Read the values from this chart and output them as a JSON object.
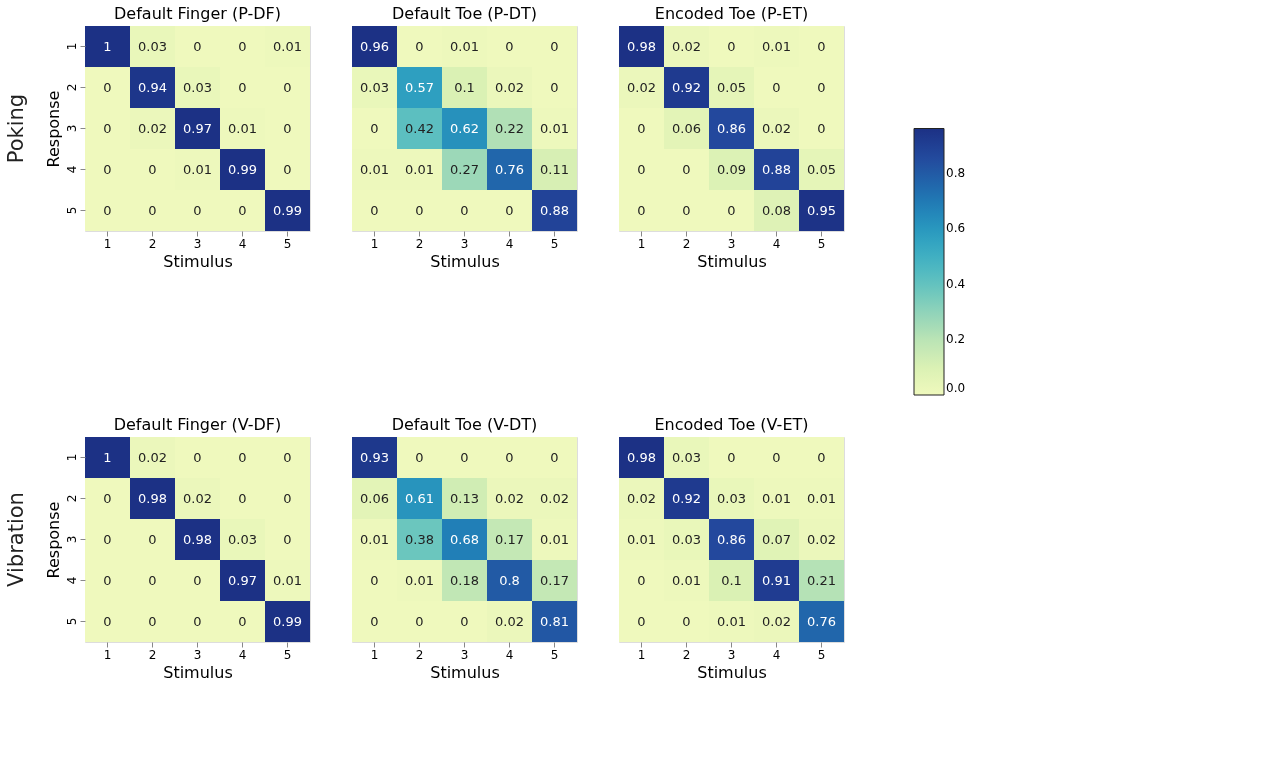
{
  "chart_data": [
    {
      "type": "heatmap",
      "title": "Default Finger (P-DF)",
      "xlabel": "Stimulus",
      "ylabel": "Response",
      "annotations": [
        "Poking"
      ],
      "categories": [
        "1",
        "2",
        "3",
        "4",
        "5"
      ],
      "y_categories": [
        "1",
        "2",
        "3",
        "4",
        "5"
      ],
      "data_labels": true,
      "cells": [
        [
          1,
          0.03,
          0,
          0,
          0.01
        ],
        [
          0,
          0.94,
          0.03,
          0,
          0
        ],
        [
          0,
          0.02,
          0.97,
          0.01,
          0
        ],
        [
          0,
          0,
          0.01,
          0.99,
          0
        ],
        [
          0,
          0,
          0,
          0,
          0.99
        ]
      ]
    },
    {
      "type": "heatmap",
      "title": "Default Toe (P-DT)",
      "xlabel": "Stimulus",
      "tick_labels": "x",
      "categories": [
        "1",
        "2",
        "3",
        "4",
        "5"
      ],
      "y_categories": [
        "1",
        "2",
        "3",
        "4",
        "5"
      ],
      "data_labels": true,
      "cells": [
        [
          0.96,
          0,
          0.01,
          0,
          0
        ],
        [
          0.03,
          0.57,
          0.1,
          0.02,
          0
        ],
        [
          0,
          0.42,
          0.62,
          0.22,
          0.01
        ],
        [
          0.01,
          0.01,
          0.27,
          0.76,
          0.11
        ],
        [
          0,
          0,
          0,
          0,
          0.88
        ]
      ]
    },
    {
      "type": "heatmap",
      "title": "Encoded Toe (P-ET)",
      "xlabel": "Stimulus",
      "tick_labels": "x",
      "categories": [
        "1",
        "2",
        "3",
        "4",
        "5"
      ],
      "y_categories": [
        "1",
        "2",
        "3",
        "4",
        "5"
      ],
      "data_labels": true,
      "clim": [
        0,
        0.96
      ],
      "cticks": [
        {
          "value": 0,
          "label": "0.0"
        },
        0.2,
        0.4,
        0.6,
        0.8
      ],
      "cells": [
        [
          0.98,
          0.02,
          0,
          0.01,
          0
        ],
        [
          0.02,
          0.92,
          0.05,
          0,
          0
        ],
        [
          0,
          0.06,
          0.86,
          0.02,
          0
        ],
        [
          0,
          0,
          0.09,
          0.88,
          0.05
        ],
        [
          0,
          0,
          0,
          0.08,
          0.95
        ]
      ]
    },
    {
      "type": "heatmap",
      "title": "Default Finger (V-DF)",
      "xlabel": "Stimulus",
      "ylabel": "Response",
      "annotations": [
        "Vibration"
      ],
      "categories": [
        "1",
        "2",
        "3",
        "4",
        "5"
      ],
      "y_categories": [
        "1",
        "2",
        "3",
        "4",
        "5"
      ],
      "data_labels": true,
      "cells": [
        [
          1,
          0.02,
          0,
          0,
          0
        ],
        [
          0,
          0.98,
          0.02,
          0,
          0
        ],
        [
          0,
          0,
          0.98,
          0.03,
          0
        ],
        [
          0,
          0,
          0,
          0.97,
          0.01
        ],
        [
          0,
          0,
          0,
          0,
          0.99
        ]
      ]
    },
    {
      "type": "heatmap",
      "title": "Default Toe (V-DT)",
      "xlabel": "Stimulus",
      "tick_labels": "x",
      "categories": [
        "1",
        "2",
        "3",
        "4",
        "5"
      ],
      "y_categories": [
        "1",
        "2",
        "3",
        "4",
        "5"
      ],
      "data_labels": true,
      "cells": [
        [
          0.93,
          0,
          0,
          0,
          0
        ],
        [
          0.06,
          0.61,
          0.13,
          0.02,
          0.02
        ],
        [
          0.01,
          0.38,
          0.68,
          0.17,
          0.01
        ],
        [
          0,
          0.01,
          0.18,
          0.8,
          0.17
        ],
        [
          0,
          0,
          0,
          0.02,
          0.81
        ]
      ]
    },
    {
      "type": "heatmap",
      "title": "Encoded Toe (V-ET)",
      "xlabel": "Stimulus",
      "tick_labels": "x",
      "categories": [
        "1",
        "2",
        "3",
        "4",
        "5"
      ],
      "y_categories": [
        "1",
        "2",
        "3",
        "4",
        "5"
      ],
      "data_labels": true,
      "cells": [
        [
          0.98,
          0.03,
          0,
          0,
          0
        ],
        [
          0.02,
          0.92,
          0.03,
          0.01,
          0.01
        ],
        [
          0.01,
          0.03,
          0.86,
          0.07,
          0.02
        ],
        [
          0,
          0.01,
          0.1,
          0.91,
          0.21
        ],
        [
          0,
          0,
          0.01,
          0.02,
          0.76
        ]
      ]
    }
  ]
}
